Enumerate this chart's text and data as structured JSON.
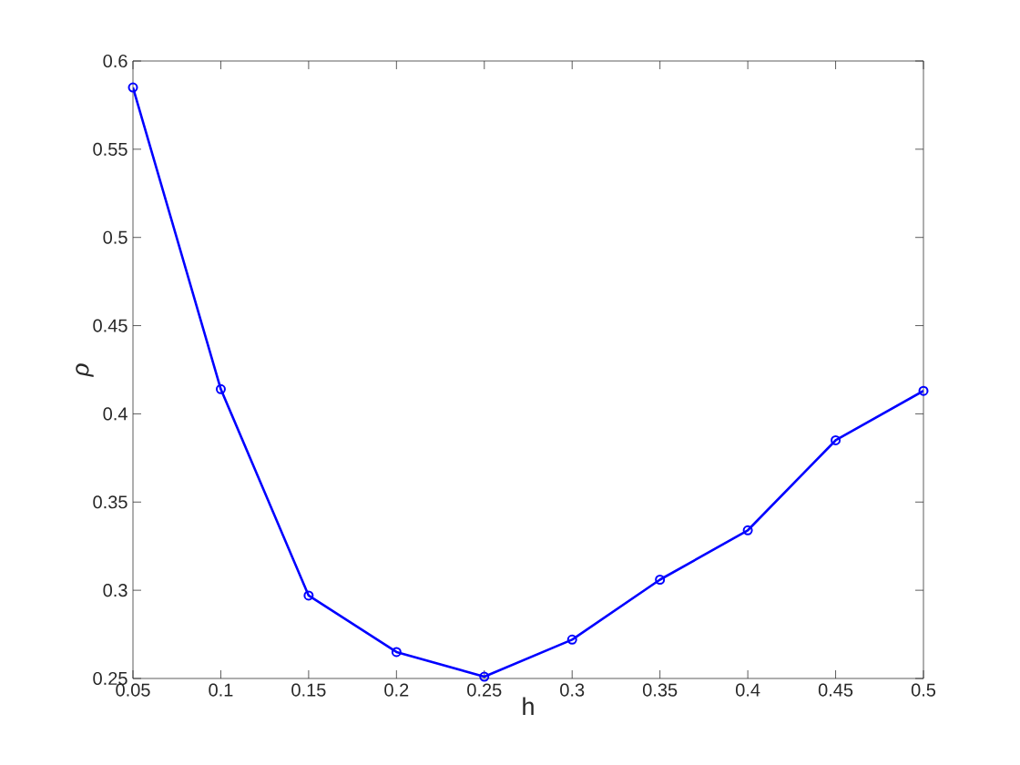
{
  "chart_data": {
    "type": "line",
    "xlabel": "h",
    "ylabel": "ρ",
    "x": [
      0.05,
      0.1,
      0.15,
      0.2,
      0.25,
      0.3,
      0.35,
      0.4,
      0.45,
      0.5
    ],
    "series": [
      {
        "color": "#0000ff",
        "values": [
          0.585,
          0.414,
          0.297,
          0.265,
          0.251,
          0.272,
          0.306,
          0.334,
          0.385,
          0.413
        ]
      }
    ],
    "xlim": [
      0.05,
      0.5
    ],
    "ylim": [
      0.25,
      0.6
    ],
    "xticks": [
      0.05,
      0.1,
      0.15,
      0.2,
      0.25,
      0.3,
      0.35,
      0.4,
      0.45,
      0.5
    ],
    "yticks": [
      0.25,
      0.3,
      0.35,
      0.4,
      0.45,
      0.5,
      0.55,
      0.6
    ],
    "marker": "circle",
    "line_style": "solid",
    "grid": false
  }
}
